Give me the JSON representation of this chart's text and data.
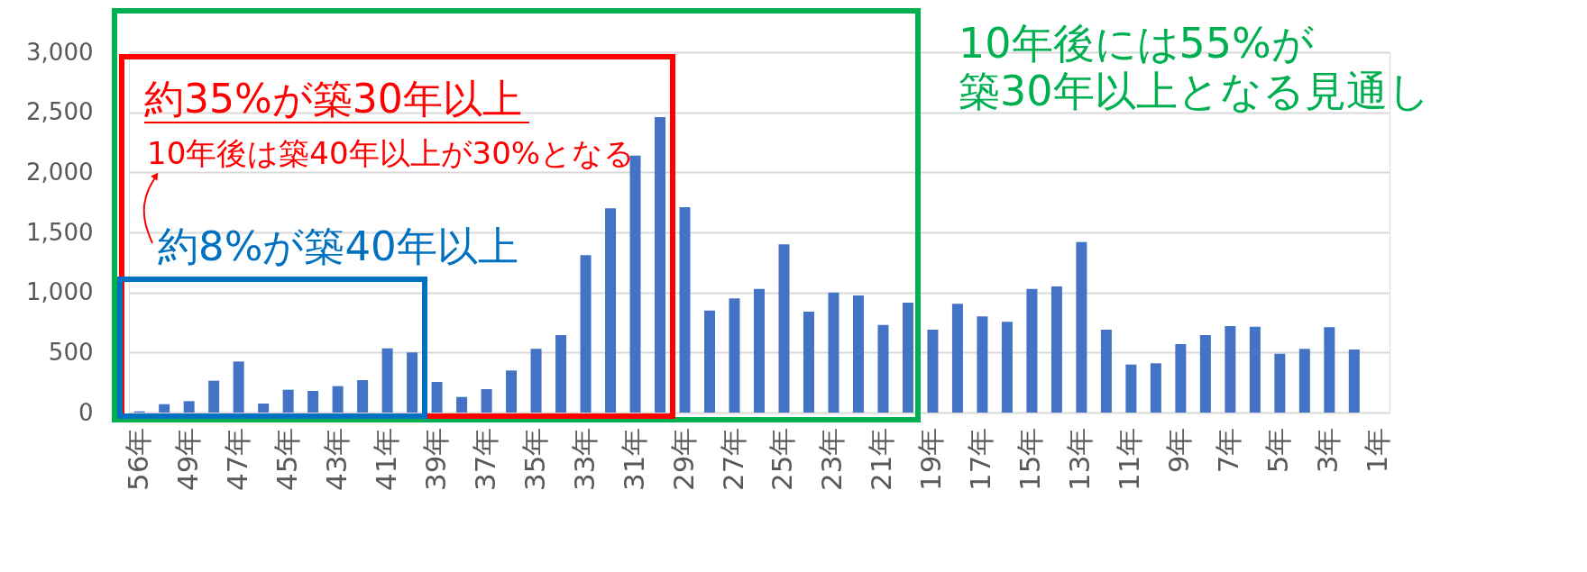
{
  "chart_data": {
    "type": "bar",
    "categories": [
      "56年",
      null,
      "49年",
      null,
      "47年",
      null,
      "45年",
      null,
      "43年",
      null,
      "41年",
      null,
      "39年",
      null,
      "37年",
      null,
      "35年",
      null,
      "33年",
      null,
      "31年",
      null,
      "29年",
      null,
      "27年",
      null,
      "25年",
      null,
      "23年",
      null,
      "21年",
      null,
      "19年",
      null,
      "17年",
      null,
      "15年",
      null,
      "13年",
      null,
      "11年",
      null,
      "9年",
      null,
      "7年",
      null,
      "5年",
      null,
      "3年",
      null,
      "1年"
    ],
    "values": [
      10,
      70,
      95,
      265,
      425,
      75,
      190,
      180,
      220,
      270,
      535,
      500,
      255,
      130,
      195,
      350,
      530,
      645,
      1310,
      1700,
      2140,
      2460,
      1710,
      850,
      950,
      1030,
      1400,
      840,
      1000,
      975,
      730,
      915,
      690,
      905,
      800,
      755,
      1030,
      1050,
      1420,
      690,
      400,
      410,
      570,
      645,
      720,
      715,
      490,
      530,
      710,
      525,
      null
    ],
    "color": "#4472c4",
    "ylim": [
      0,
      3000
    ],
    "yticks": [
      {
        "value": 0,
        "label": "0"
      },
      {
        "value": 500,
        "label": "500"
      },
      {
        "value": 1000,
        "label": "1,000"
      },
      {
        "value": 1500,
        "label": "1,500"
      },
      {
        "value": 2000,
        "label": "2,000"
      },
      {
        "value": 2500,
        "label": "2,500"
      },
      {
        "value": 3000,
        "label": "3,000"
      }
    ],
    "grid": "y",
    "annotations": [
      "約35%が築30年以上",
      "10年後は築40年以上が30%となる",
      "約8%が築40年以上",
      "10年後には55%が",
      "築30年以上となる見通し"
    ]
  }
}
